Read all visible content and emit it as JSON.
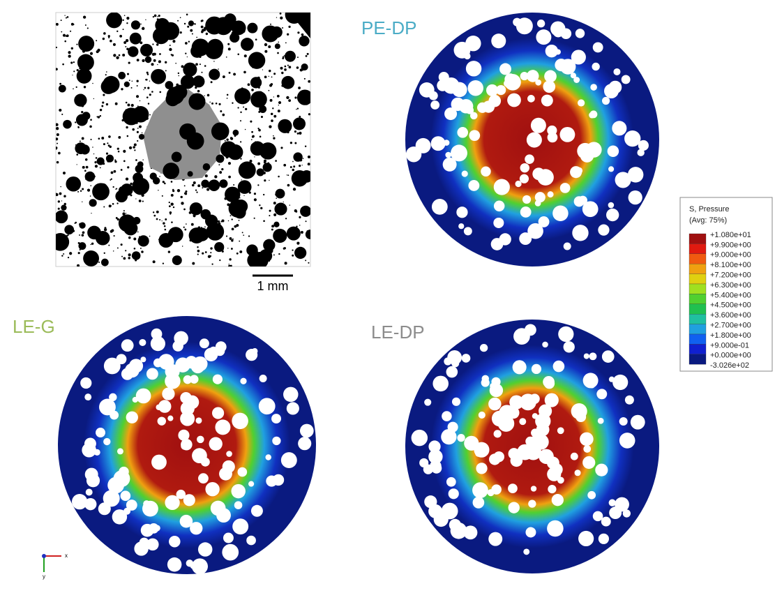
{
  "panels": [
    {
      "label": "PE-DP",
      "color": "#4bacc6"
    },
    {
      "label": "LE-G",
      "color": "#9bbb59"
    },
    {
      "label": "LE-DP",
      "color": "#8c8c8c"
    }
  ],
  "scale_bar": "1 mm",
  "legend": {
    "title": "S, Pressure",
    "subtitle": "(Avg: 75%)",
    "labels": [
      "+1.080e+01",
      "+9.900e+00",
      "+9.000e+00",
      "+8.100e+00",
      "+7.200e+00",
      "+6.300e+00",
      "+5.400e+00",
      "+4.500e+00",
      "+3.600e+00",
      "+2.700e+00",
      "+1.800e+00",
      "+9.000e-01",
      "+0.000e+00",
      "-3.026e+02"
    ],
    "colors": [
      "#a01010",
      "#e01a10",
      "#f05a10",
      "#f0a010",
      "#e0d010",
      "#a0e020",
      "#50d030",
      "#20c050",
      "#20c0a0",
      "#20a0e0",
      "#1060f0",
      "#1020d0",
      "#0a1a80"
    ]
  },
  "triad": {
    "x": "x",
    "y": "y"
  }
}
